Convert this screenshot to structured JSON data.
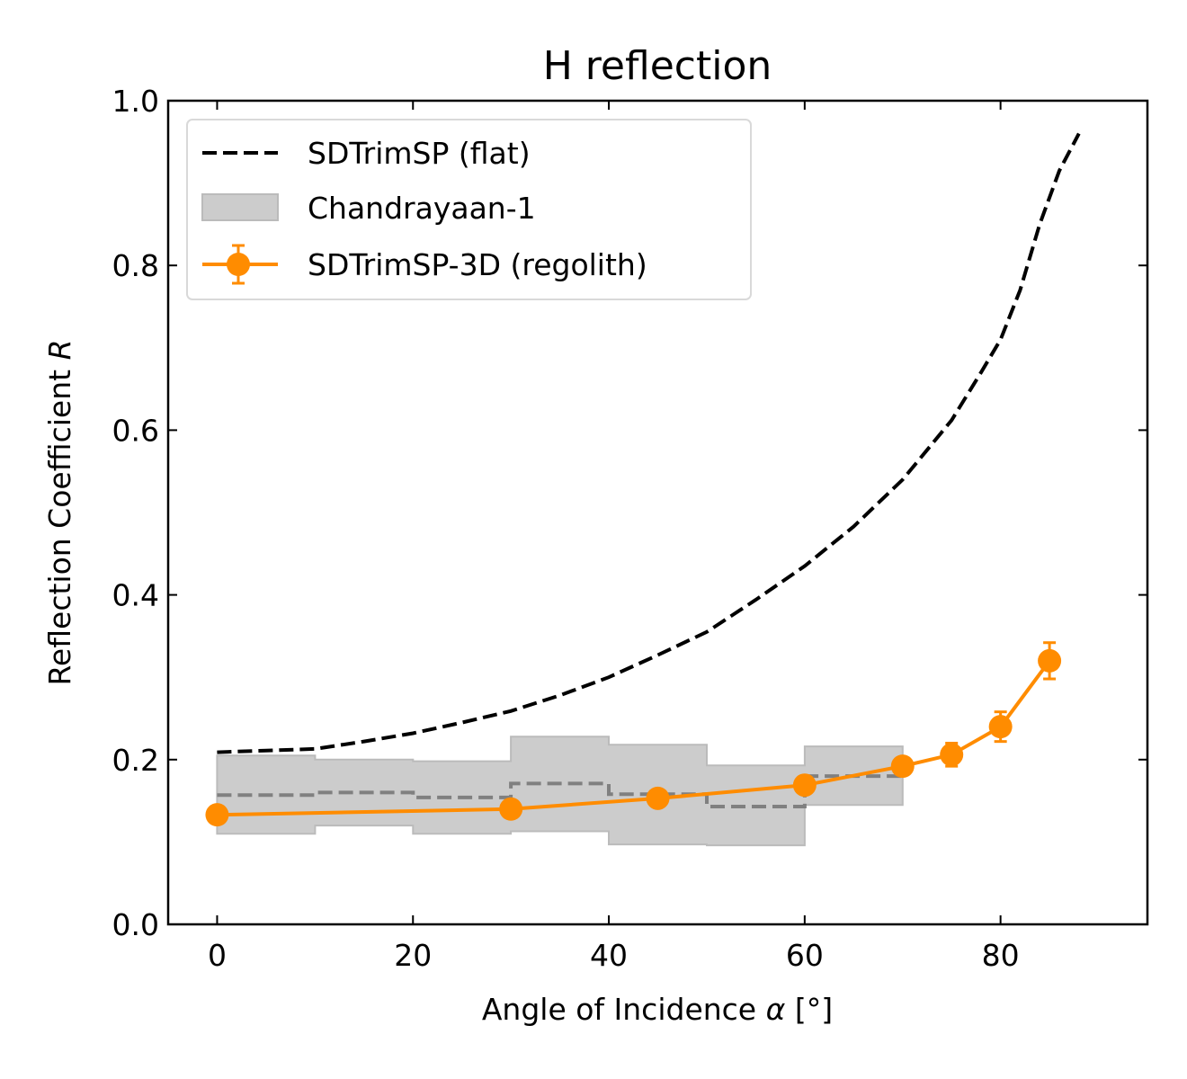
{
  "chart_data": {
    "type": "line",
    "title": "H reflection",
    "xlabel": "Angle of Incidence",
    "xlabel_symbol": "α",
    "xlabel_unit": "[°]",
    "ylabel": "Reflection Coefficient",
    "ylabel_symbol": "R",
    "xlim": [
      -5,
      95
    ],
    "ylim": [
      0.0,
      1.0
    ],
    "xticks": [
      0,
      20,
      40,
      60,
      80
    ],
    "xtick_labels": [
      "0",
      "20",
      "40",
      "60",
      "80"
    ],
    "yticks": [
      0.0,
      0.2,
      0.4,
      0.6,
      0.8,
      1.0
    ],
    "ytick_labels": [
      "0.0",
      "0.2",
      "0.4",
      "0.6",
      "0.8",
      "1.0"
    ],
    "grid": false,
    "legend_position": "top-left",
    "series": [
      {
        "name": "SDTrimSP (flat)",
        "kind": "line",
        "style": "dashed",
        "color": "#000000",
        "x": [
          0,
          5,
          10,
          15,
          20,
          25,
          30,
          35,
          40,
          45,
          50,
          55,
          60,
          65,
          70,
          75,
          78,
          80,
          82,
          84,
          86,
          88
        ],
        "y": [
          0.209,
          0.211,
          0.213,
          0.222,
          0.232,
          0.245,
          0.259,
          0.278,
          0.3,
          0.327,
          0.355,
          0.394,
          0.435,
          0.483,
          0.54,
          0.612,
          0.67,
          0.71,
          0.77,
          0.85,
          0.915,
          0.96
        ]
      },
      {
        "name": "Chandrayaan-1",
        "kind": "band",
        "fill": "#cccccc",
        "edge": "#bbbbbb",
        "median_color": "#808080",
        "bins": [
          {
            "x0": 0,
            "x1": 10,
            "low": 0.11,
            "high": 0.205,
            "mid": 0.157
          },
          {
            "x0": 10,
            "x1": 20,
            "low": 0.12,
            "high": 0.2,
            "mid": 0.16
          },
          {
            "x0": 20,
            "x1": 30,
            "low": 0.11,
            "high": 0.198,
            "mid": 0.154
          },
          {
            "x0": 30,
            "x1": 40,
            "low": 0.113,
            "high": 0.228,
            "mid": 0.171
          },
          {
            "x0": 40,
            "x1": 50,
            "low": 0.097,
            "high": 0.218,
            "mid": 0.158
          },
          {
            "x0": 50,
            "x1": 60,
            "low": 0.096,
            "high": 0.193,
            "mid": 0.143
          },
          {
            "x0": 60,
            "x1": 70,
            "low": 0.145,
            "high": 0.216,
            "mid": 0.18
          }
        ]
      },
      {
        "name": "SDTrimSP-3D (regolith)",
        "kind": "errorbar-line",
        "color": "#ff8c00",
        "x": [
          0,
          30,
          45,
          60,
          70,
          75,
          80,
          85
        ],
        "y": [
          0.133,
          0.14,
          0.153,
          0.169,
          0.192,
          0.206,
          0.24,
          0.32
        ],
        "yerr": [
          0.004,
          0.004,
          0.005,
          0.006,
          0.01,
          0.014,
          0.018,
          0.022
        ]
      }
    ]
  }
}
